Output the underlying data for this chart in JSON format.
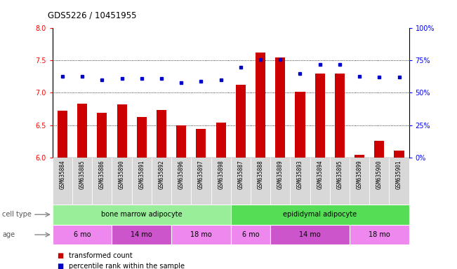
{
  "title": "GDS5226 / 10451955",
  "samples": [
    "GSM635884",
    "GSM635885",
    "GSM635886",
    "GSM635890",
    "GSM635891",
    "GSM635892",
    "GSM635896",
    "GSM635897",
    "GSM635898",
    "GSM635887",
    "GSM635888",
    "GSM635889",
    "GSM635893",
    "GSM635894",
    "GSM635895",
    "GSM635899",
    "GSM635900",
    "GSM635901"
  ],
  "bar_values": [
    6.72,
    6.83,
    6.69,
    6.82,
    6.63,
    6.73,
    6.5,
    6.44,
    6.54,
    7.12,
    7.62,
    7.55,
    7.02,
    7.3,
    7.3,
    6.04,
    6.26,
    6.1
  ],
  "dot_values": [
    63,
    63,
    60,
    61,
    61,
    61,
    58,
    59,
    60,
    70,
    76,
    76,
    65,
    72,
    72,
    63,
    62,
    62
  ],
  "bar_color": "#cc0000",
  "dot_color": "#0000cc",
  "ylim_left": [
    6,
    8
  ],
  "ylim_right": [
    0,
    100
  ],
  "yticks_left": [
    6,
    6.5,
    7,
    7.5,
    8
  ],
  "yticks_right": [
    0,
    25,
    50,
    75,
    100
  ],
  "ytick_labels_right": [
    "0%",
    "25%",
    "50%",
    "75%",
    "100%"
  ],
  "cell_type_groups": [
    {
      "label": "bone marrow adipocyte",
      "start": 0,
      "end": 9,
      "color": "#99ee99"
    },
    {
      "label": "epididymal adipocyte",
      "start": 9,
      "end": 18,
      "color": "#55dd55"
    }
  ],
  "age_groups": [
    {
      "label": "6 mo",
      "start": 0,
      "end": 3,
      "color": "#ee88ee"
    },
    {
      "label": "14 mo",
      "start": 3,
      "end": 6,
      "color": "#cc55cc"
    },
    {
      "label": "18 mo",
      "start": 6,
      "end": 9,
      "color": "#ee88ee"
    },
    {
      "label": "6 mo",
      "start": 9,
      "end": 11,
      "color": "#ee88ee"
    },
    {
      "label": "14 mo",
      "start": 11,
      "end": 15,
      "color": "#cc55cc"
    },
    {
      "label": "18 mo",
      "start": 15,
      "end": 18,
      "color": "#ee88ee"
    }
  ],
  "legend_bar_label": "transformed count",
  "legend_dot_label": "percentile rank within the sample",
  "cell_type_label": "cell type",
  "age_label": "age",
  "plot_bg_color": "#ffffff",
  "tick_bg_color": "#d8d8d8"
}
